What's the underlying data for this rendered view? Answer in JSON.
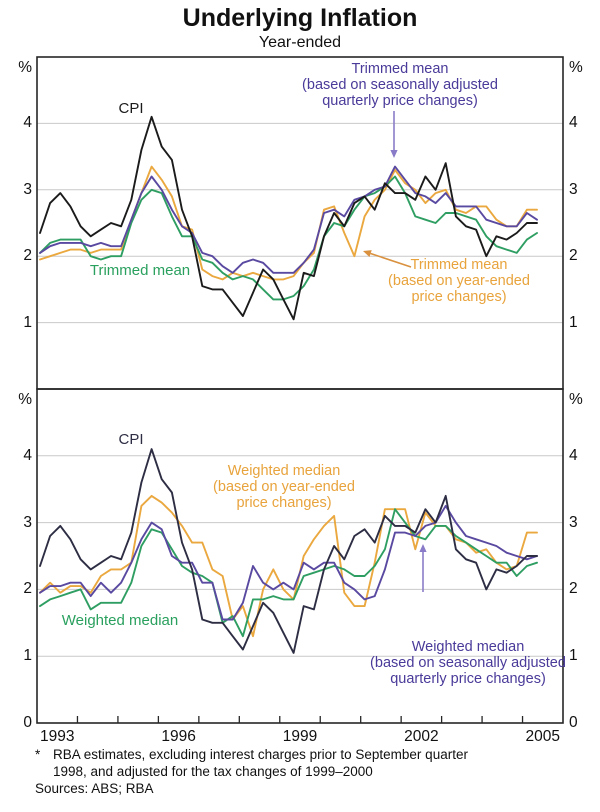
{
  "page": {
    "title": "Underlying Inflation",
    "subtitle": "Year-ended"
  },
  "footnote": {
    "marker": "*",
    "line1": "RBA estimates, excluding interest charges prior to September quarter",
    "line2": "1998, and adjusted for the tax changes of 1999–2000",
    "sources": "Sources: ABS; RBA"
  },
  "axes": {
    "unit_label": "%",
    "x_labels": [
      "1993",
      "1996",
      "1999",
      "2002",
      "2005"
    ],
    "x_label_years": [
      1993,
      1996,
      1999,
      2002,
      2005
    ],
    "x_tick_years": [
      1994,
      1995,
      1996,
      1997,
      1998,
      1999,
      2000,
      2001,
      2002,
      2003,
      2004,
      2005
    ],
    "y_ticks_top": [
      4,
      3,
      2,
      1
    ],
    "y_ticks_bottom": [
      4,
      3,
      2,
      1,
      0
    ]
  },
  "colors": {
    "cpi_top": "#1b1b1b",
    "cpi_bottom": "#2d2d44",
    "green": "#2f9e62",
    "orange": "#eaa83f",
    "purple": "#5a49a0",
    "purple_label": "#4a3a99",
    "orange_label": "#e8a33c",
    "green_label": "#2aa05e",
    "arrow_purple": "#8a7bc8",
    "arrow_orange": "#d9913f",
    "grid": "#c9c9c9",
    "frame": "#262626"
  },
  "chart_data": {
    "type": "line",
    "title": "Underlying Inflation",
    "subtitle": "Year-ended",
    "ylabel": "%",
    "ylim": [
      0,
      5
    ],
    "x_range_years": [
      1993,
      2006
    ],
    "grid": true,
    "quarters": [
      "1993Q1",
      "1993Q2",
      "1993Q3",
      "1993Q4",
      "1994Q1",
      "1994Q2",
      "1994Q3",
      "1994Q4",
      "1995Q1",
      "1995Q2",
      "1995Q3",
      "1995Q4",
      "1996Q1",
      "1996Q2",
      "1996Q3",
      "1996Q4",
      "1997Q1",
      "1997Q2",
      "1997Q3",
      "1997Q4",
      "1998Q1",
      "1998Q2",
      "1998Q3",
      "1998Q4",
      "1999Q1",
      "1999Q2",
      "1999Q3",
      "1999Q4",
      "2000Q1",
      "2000Q2",
      "2000Q3",
      "2000Q4",
      "2001Q1",
      "2001Q2",
      "2001Q3",
      "2001Q4",
      "2002Q1",
      "2002Q2",
      "2002Q3",
      "2002Q4",
      "2003Q1",
      "2003Q2",
      "2003Q3",
      "2003Q4",
      "2004Q1",
      "2004Q2",
      "2004Q3",
      "2004Q4",
      "2005Q1",
      "2005Q2"
    ],
    "panels": [
      {
        "name": "top",
        "series": [
          {
            "key": "tm_year_ended",
            "name": "Trimmed mean (based on year-ended price changes)",
            "color_key": "orange",
            "values": [
              1.95,
              2.0,
              2.05,
              2.1,
              2.1,
              2.05,
              2.1,
              2.1,
              2.1,
              2.55,
              2.95,
              3.35,
              3.15,
              2.9,
              2.45,
              2.4,
              1.8,
              1.7,
              1.65,
              1.75,
              1.7,
              1.75,
              1.7,
              1.65,
              1.65,
              1.7,
              1.9,
              2.05,
              2.7,
              2.75,
              2.35,
              2.0,
              2.6,
              2.85,
              3.0,
              3.3,
              3.1,
              3.0,
              2.8,
              2.95,
              3.0,
              2.7,
              2.65,
              2.75,
              2.75,
              2.55,
              2.45,
              2.45,
              2.7,
              2.7
            ]
          },
          {
            "key": "tm_plain",
            "name": "Trimmed mean",
            "color_key": "green",
            "values": [
              2.05,
              2.2,
              2.25,
              2.25,
              2.25,
              2.0,
              1.95,
              2.0,
              2.0,
              2.5,
              2.85,
              3.0,
              2.95,
              2.6,
              2.3,
              2.3,
              1.95,
              1.9,
              1.75,
              1.65,
              1.7,
              1.65,
              1.5,
              1.35,
              1.35,
              1.4,
              1.55,
              1.8,
              2.3,
              2.5,
              2.45,
              2.7,
              2.9,
              2.95,
              3.05,
              3.2,
              2.95,
              2.6,
              2.55,
              2.5,
              2.65,
              2.65,
              2.6,
              2.55,
              2.3,
              2.15,
              2.1,
              2.05,
              2.25,
              2.35
            ]
          },
          {
            "key": "tm_sa_quarterly",
            "name": "Trimmed mean (based on seasonally adjusted quarterly price changes)",
            "color_key": "purple",
            "values": [
              2.05,
              2.15,
              2.2,
              2.2,
              2.2,
              2.15,
              2.2,
              2.15,
              2.15,
              2.55,
              2.95,
              3.2,
              3.0,
              2.7,
              2.45,
              2.35,
              2.05,
              2.0,
              1.85,
              1.75,
              1.9,
              1.95,
              1.9,
              1.75,
              1.75,
              1.75,
              1.9,
              2.1,
              2.65,
              2.7,
              2.6,
              2.85,
              2.9,
              3.0,
              3.05,
              3.35,
              3.15,
              2.95,
              2.9,
              2.8,
              2.95,
              2.75,
              2.75,
              2.75,
              2.55,
              2.5,
              2.45,
              2.45,
              2.65,
              2.55
            ]
          },
          {
            "key": "cpi",
            "name": "CPI",
            "color_key": "cpi_top",
            "values": [
              2.35,
              2.8,
              2.95,
              2.75,
              2.45,
              2.3,
              2.4,
              2.5,
              2.45,
              2.85,
              3.6,
              4.1,
              3.65,
              3.45,
              2.7,
              2.3,
              1.55,
              1.5,
              1.5,
              1.3,
              1.1,
              1.45,
              1.8,
              1.65,
              1.35,
              1.05,
              1.75,
              1.7,
              2.3,
              2.65,
              2.45,
              2.8,
              2.9,
              2.7,
              3.1,
              2.95,
              2.95,
              2.85,
              3.2,
              3.0,
              3.4,
              2.6,
              2.45,
              2.4,
              2.0,
              2.3,
              2.25,
              2.35,
              2.5,
              2.5
            ]
          }
        ],
        "annotations": [
          {
            "id": "cpi-top",
            "lines": [
              "CPI"
            ],
            "color_key": "cpi_top"
          },
          {
            "id": "trimmed-mean-sa",
            "lines": [
              "Trimmed mean",
              "(based on seasonally adjusted",
              "quarterly price changes)"
            ],
            "color_key": "purple_label",
            "points_to": "purple line peak 3.35 at 2001Q4"
          },
          {
            "id": "trimmed-mean-ye",
            "lines": [
              "Trimmed mean",
              "(based on year-ended",
              "price changes)"
            ],
            "color_key": "orange_label",
            "points_to": "orange line dip 2.0 at 2000Q4"
          },
          {
            "id": "trimmed-mean-plain",
            "lines": [
              "Trimmed mean"
            ],
            "color_key": "green_label"
          }
        ]
      },
      {
        "name": "bottom",
        "series": [
          {
            "key": "wm_year_ended",
            "name": "Weighted median (based on year-ended price changes)",
            "color_key": "orange",
            "values": [
              1.95,
              2.1,
              1.95,
              2.05,
              2.05,
              1.95,
              2.2,
              2.3,
              2.3,
              2.4,
              3.25,
              3.4,
              3.3,
              3.15,
              2.95,
              2.7,
              2.7,
              2.3,
              2.2,
              1.55,
              1.75,
              1.3,
              2.0,
              2.3,
              2.0,
              1.85,
              2.5,
              2.75,
              2.95,
              3.1,
              1.95,
              1.75,
              1.75,
              2.4,
              3.2,
              3.2,
              3.2,
              2.6,
              3.15,
              2.95,
              2.95,
              2.75,
              2.7,
              2.55,
              2.6,
              2.4,
              2.3,
              2.35,
              2.85,
              2.85
            ]
          },
          {
            "key": "wm_plain",
            "name": "Weighted median",
            "color_key": "green",
            "values": [
              1.75,
              1.85,
              1.9,
              1.95,
              2.0,
              1.7,
              1.8,
              1.8,
              1.8,
              2.1,
              2.65,
              2.9,
              2.85,
              2.6,
              2.35,
              2.25,
              2.2,
              2.1,
              1.5,
              1.6,
              1.3,
              1.85,
              1.85,
              1.9,
              1.85,
              1.85,
              2.2,
              2.25,
              2.3,
              2.35,
              2.3,
              2.2,
              2.2,
              2.35,
              2.6,
              3.2,
              3.0,
              2.8,
              2.75,
              2.95,
              2.95,
              2.8,
              2.7,
              2.6,
              2.5,
              2.4,
              2.4,
              2.2,
              2.35,
              2.4
            ]
          },
          {
            "key": "wm_sa_quarterly",
            "name": "Weighted median (based on seasonally adjusted quarterly price changes)",
            "color_key": "purple",
            "values": [
              1.95,
              2.05,
              2.05,
              2.1,
              2.1,
              1.9,
              2.1,
              1.95,
              2.1,
              2.4,
              2.75,
              3.0,
              2.9,
              2.5,
              2.4,
              2.4,
              2.1,
              2.1,
              1.55,
              1.55,
              1.8,
              2.35,
              2.1,
              2.0,
              2.1,
              2.0,
              2.4,
              2.3,
              2.4,
              2.4,
              2.1,
              2.0,
              1.85,
              1.9,
              2.3,
              2.85,
              2.85,
              2.8,
              2.95,
              3.0,
              3.25,
              3.0,
              2.8,
              2.75,
              2.7,
              2.65,
              2.55,
              2.5,
              2.45,
              2.5
            ]
          },
          {
            "key": "cpi",
            "name": "CPI",
            "color_key": "cpi_bottom",
            "values": [
              2.35,
              2.8,
              2.95,
              2.75,
              2.45,
              2.3,
              2.4,
              2.5,
              2.45,
              2.85,
              3.6,
              4.1,
              3.65,
              3.45,
              2.7,
              2.3,
              1.55,
              1.5,
              1.5,
              1.3,
              1.1,
              1.45,
              1.8,
              1.65,
              1.35,
              1.05,
              1.75,
              1.7,
              2.3,
              2.65,
              2.45,
              2.8,
              2.9,
              2.7,
              3.1,
              2.95,
              2.95,
              2.85,
              3.2,
              3.0,
              3.4,
              2.6,
              2.45,
              2.4,
              2.0,
              2.3,
              2.25,
              2.35,
              2.5,
              2.5
            ]
          }
        ],
        "annotations": [
          {
            "id": "cpi-bottom",
            "lines": [
              "CPI"
            ],
            "color_key": "cpi_bottom"
          },
          {
            "id": "weighted-median-ye",
            "lines": [
              "Weighted median",
              "(based on year-ended",
              "price changes)"
            ],
            "color_key": "orange_label"
          },
          {
            "id": "weighted-median-plain",
            "lines": [
              "Weighted median"
            ],
            "color_key": "green_label"
          },
          {
            "id": "weighted-median-sa",
            "lines": [
              "Weighted median",
              "(based on seasonally adjusted",
              "quarterly price changes)"
            ],
            "color_key": "purple_label",
            "points_to": "purple line 2.8 at 2002Q2"
          }
        ]
      }
    ]
  }
}
